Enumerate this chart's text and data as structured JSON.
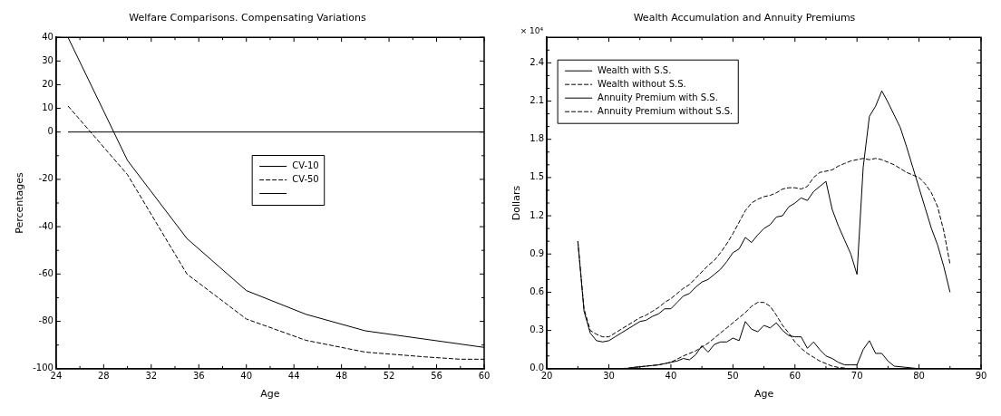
{
  "chart_data": [
    {
      "type": "line",
      "title": "Welfare Comparisons. Compensating Variations",
      "xlabel": "Age",
      "ylabel": "Percentages",
      "xlim": [
        24,
        60
      ],
      "xticks": [
        24,
        {
          "value": 26,
          "label": null
        },
        28,
        {
          "value": 30,
          "label": null
        },
        32,
        {
          "value": 34,
          "label": null
        },
        36,
        {
          "value": 38,
          "label": null
        },
        40,
        {
          "value": 42,
          "label": null
        },
        44,
        {
          "value": 46,
          "label": null
        },
        48,
        {
          "value": 50,
          "label": null
        },
        52,
        {
          "value": 54,
          "label": null
        },
        56,
        {
          "value": 58,
          "label": null
        },
        60
      ],
      "ylim": [
        -100,
        40
      ],
      "yticks": [
        -100,
        {
          "value": -90,
          "label": null
        },
        -80,
        {
          "value": -70,
          "label": null
        },
        -60,
        {
          "value": -50,
          "label": null
        },
        -40,
        {
          "value": -30,
          "label": null
        },
        -20,
        {
          "value": -10,
          "label": null
        },
        0,
        10,
        20,
        30,
        40
      ],
      "grid": false,
      "legend": "center",
      "series": [
        {
          "name": "CV-10",
          "color": "#000000",
          "line_style": "solid",
          "x": [
            25,
            30,
            35,
            40,
            45,
            50,
            60
          ],
          "values": [
            40,
            -12,
            -45,
            -67,
            -77,
            -84,
            -91
          ]
        },
        {
          "name": "CV-50",
          "color": "#000000",
          "line_style": "dashed",
          "x": [
            25,
            30,
            35,
            40,
            45,
            50,
            55,
            58,
            60
          ],
          "values": [
            11,
            -18,
            -60,
            -79,
            -88,
            -93,
            -95,
            -96,
            -96
          ]
        },
        {
          "color": "#000000",
          "line_style": "solid",
          "x": [
            25,
            60
          ],
          "values": [
            0,
            0
          ]
        }
      ]
    },
    {
      "type": "line",
      "title": "Wealth Accumulation and Annuity Premiums",
      "xlabel": "Age",
      "ylabel": "Dollars",
      "annotations": [
        "× 10⁴"
      ],
      "xlim": [
        20,
        90
      ],
      "xticks": [
        20,
        {
          "value": 25,
          "label": null
        },
        30,
        {
          "value": 35,
          "label": null
        },
        40,
        {
          "value": 45,
          "label": null
        },
        50,
        {
          "value": 55,
          "label": null
        },
        60,
        {
          "value": 65,
          "label": null
        },
        70,
        {
          "value": 75,
          "label": null
        },
        80,
        {
          "value": 85,
          "label": null
        },
        90
      ],
      "ylim": [
        0,
        2.6
      ],
      "yticks": [
        {
          "value": 0,
          "label": "0.0"
        },
        {
          "value": 0.1,
          "label": null
        },
        {
          "value": 0.2,
          "label": null
        },
        {
          "value": 0.3,
          "label": "0.3"
        },
        {
          "value": 0.4,
          "label": null
        },
        {
          "value": 0.5,
          "label": null
        },
        {
          "value": 0.6,
          "label": "0.6"
        },
        {
          "value": 0.7,
          "label": null
        },
        {
          "value": 0.8,
          "label": null
        },
        {
          "value": 0.9,
          "label": "0.9"
        },
        {
          "value": 1.0,
          "label": null
        },
        {
          "value": 1.1,
          "label": null
        },
        {
          "value": 1.2,
          "label": "1.2"
        },
        {
          "value": 1.3,
          "label": null
        },
        {
          "value": 1.4,
          "label": null
        },
        {
          "value": 1.5,
          "label": "1.5"
        },
        {
          "value": 1.6,
          "label": null
        },
        {
          "value": 1.7,
          "label": null
        },
        {
          "value": 1.8,
          "label": "1.8"
        },
        {
          "value": 1.9,
          "label": null
        },
        {
          "value": 2.0,
          "label": null
        },
        {
          "value": 2.1,
          "label": "2.1"
        },
        {
          "value": 2.2,
          "label": null
        },
        {
          "value": 2.3,
          "label": null
        },
        {
          "value": 2.4,
          "label": "2.4"
        },
        {
          "value": 2.5,
          "label": null
        }
      ],
      "grid": false,
      "legend": "top left",
      "series": [
        {
          "name": "Wealth with S.S.",
          "color": "#000000",
          "line_style": "solid",
          "x": [
            25,
            26,
            27,
            28,
            29,
            30,
            31,
            32,
            33,
            34,
            35,
            36,
            37,
            38,
            39,
            40,
            41,
            42,
            43,
            44,
            45,
            46,
            47,
            48,
            49,
            50,
            51,
            52,
            53,
            54,
            55,
            56,
            57,
            58,
            59,
            60,
            61,
            62,
            63,
            64,
            65,
            66,
            67,
            68,
            69,
            70,
            71,
            72,
            73,
            74,
            75,
            76,
            77,
            78,
            79,
            80,
            81,
            82,
            83,
            84,
            85
          ],
          "values": [
            1.0,
            0.45,
            0.28,
            0.22,
            0.21,
            0.22,
            0.25,
            0.28,
            0.31,
            0.34,
            0.37,
            0.38,
            0.41,
            0.43,
            0.47,
            0.47,
            0.52,
            0.57,
            0.59,
            0.64,
            0.68,
            0.7,
            0.74,
            0.78,
            0.84,
            0.91,
            0.94,
            1.03,
            0.99,
            1.05,
            1.1,
            1.13,
            1.19,
            1.2,
            1.27,
            1.3,
            1.34,
            1.32,
            1.39,
            1.43,
            1.47,
            1.25,
            1.12,
            1.01,
            0.9,
            0.74,
            1.58,
            1.98,
            2.06,
            2.18,
            2.09,
            1.99,
            1.89,
            1.74,
            1.58,
            1.42,
            1.26,
            1.1,
            0.97,
            0.8,
            0.6
          ]
        },
        {
          "name": "Wealth without S.S.",
          "color": "#000000",
          "line_style": "dashed",
          "x": [
            25,
            26,
            27,
            28,
            29,
            30,
            31,
            32,
            33,
            34,
            35,
            36,
            37,
            38,
            39,
            40,
            41,
            42,
            43,
            44,
            45,
            46,
            47,
            48,
            49,
            50,
            51,
            52,
            53,
            54,
            55,
            56,
            57,
            58,
            59,
            60,
            61,
            62,
            63,
            64,
            65,
            66,
            67,
            68,
            69,
            70,
            71,
            72,
            73,
            74,
            75,
            76,
            77,
            78,
            79,
            80,
            81,
            82,
            83,
            84,
            85
          ],
          "values": [
            1.0,
            0.47,
            0.3,
            0.27,
            0.25,
            0.25,
            0.28,
            0.31,
            0.34,
            0.37,
            0.4,
            0.42,
            0.45,
            0.48,
            0.52,
            0.55,
            0.59,
            0.63,
            0.66,
            0.71,
            0.76,
            0.81,
            0.85,
            0.91,
            0.98,
            1.06,
            1.15,
            1.24,
            1.3,
            1.33,
            1.35,
            1.36,
            1.38,
            1.41,
            1.42,
            1.42,
            1.41,
            1.43,
            1.5,
            1.54,
            1.55,
            1.56,
            1.59,
            1.61,
            1.63,
            1.64,
            1.65,
            1.64,
            1.65,
            1.64,
            1.62,
            1.6,
            1.57,
            1.54,
            1.52,
            1.5,
            1.45,
            1.38,
            1.27,
            1.08,
            0.82
          ]
        },
        {
          "name": "Annuity Premium with S.S.",
          "color": "#000000",
          "line_style": "solid",
          "x": [
            30,
            31,
            32,
            33,
            34,
            35,
            36,
            37,
            38,
            39,
            40,
            41,
            42,
            43,
            44,
            45,
            46,
            47,
            48,
            49,
            50,
            51,
            52,
            53,
            54,
            55,
            56,
            57,
            58,
            59,
            60,
            61,
            62,
            63,
            64,
            65,
            66,
            67,
            68,
            69,
            70,
            71,
            72,
            73,
            74,
            75,
            76,
            77,
            78,
            79,
            80,
            81,
            82,
            83,
            84,
            85
          ],
          "values": [
            0,
            0,
            0,
            0,
            0.01,
            0.015,
            0.02,
            0.025,
            0.03,
            0.04,
            0.05,
            0.06,
            0.08,
            0.07,
            0.11,
            0.18,
            0.13,
            0.19,
            0.21,
            0.21,
            0.24,
            0.22,
            0.37,
            0.31,
            0.29,
            0.34,
            0.32,
            0.36,
            0.3,
            0.26,
            0.25,
            0.25,
            0.16,
            0.21,
            0.15,
            0.1,
            0.08,
            0.05,
            0.03,
            0.03,
            0.03,
            0.15,
            0.22,
            0.12,
            0.12,
            0.06,
            0.02,
            0.015,
            0.01,
            0.005,
            0,
            0,
            0,
            0,
            0,
            0
          ]
        },
        {
          "name": "Annuity Premium without S.S.",
          "color": "#000000",
          "line_style": "dashed",
          "x": [
            30,
            32,
            34,
            36,
            38,
            40,
            42,
            44,
            46,
            48,
            50,
            52,
            53,
            54,
            55,
            56,
            57,
            58,
            59,
            60,
            61,
            62,
            63,
            64,
            65,
            66,
            67,
            68,
            69,
            70,
            75,
            80,
            85
          ],
          "values": [
            0,
            0,
            0.01,
            0.02,
            0.03,
            0.05,
            0.1,
            0.14,
            0.2,
            0.28,
            0.36,
            0.44,
            0.49,
            0.52,
            0.52,
            0.49,
            0.42,
            0.34,
            0.28,
            0.21,
            0.16,
            0.12,
            0.09,
            0.06,
            0.04,
            0.02,
            0.01,
            0.005,
            0,
            0,
            0,
            0,
            0
          ]
        }
      ]
    }
  ]
}
